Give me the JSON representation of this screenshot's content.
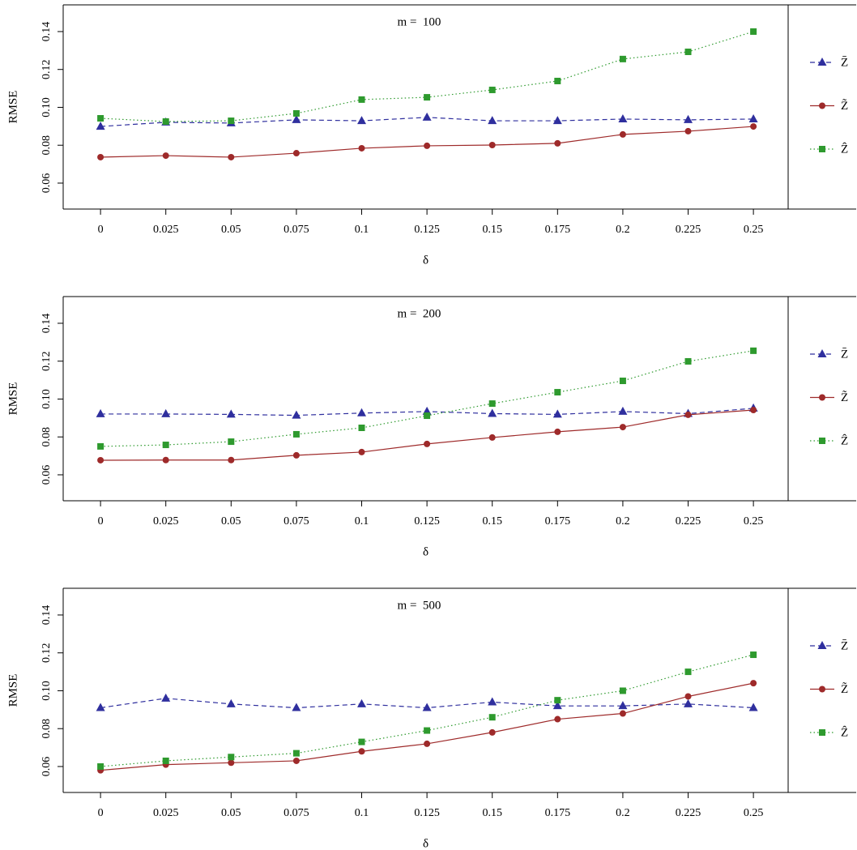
{
  "chart_data": [
    {
      "type": "line",
      "title": "m =  100",
      "xlabel": "δ",
      "ylabel": "RMSE",
      "x": [
        0,
        0.025,
        0.05,
        0.075,
        0.1,
        0.125,
        0.15,
        0.175,
        0.2,
        0.225,
        0.25
      ],
      "xlim": [
        -0.0143,
        0.2633
      ],
      "xticks": [
        0,
        0.025,
        0.05,
        0.075,
        0.1,
        0.125,
        0.15,
        0.175,
        0.2,
        0.225,
        0.25
      ],
      "ylim": [
        0.0463,
        0.1541
      ],
      "yticks": [
        0.06,
        0.08,
        {
          "value": 0.1,
          "label": "0.10"
        },
        0.12,
        0.14
      ],
      "legend_position": "right",
      "series": [
        {
          "name": "Z̄",
          "color": "#2f2f9e",
          "linestyle": "dashed",
          "marker": "triangle",
          "values": [
            0.0899,
            0.0921,
            0.0917,
            0.0934,
            0.0929,
            0.0947,
            0.0929,
            0.0929,
            0.0938,
            0.0934,
            0.0938
          ]
        },
        {
          "name": "Z̃",
          "color": "#9e2a2a",
          "linestyle": "solid",
          "marker": "circle",
          "values": [
            0.0737,
            0.0745,
            0.0737,
            0.0758,
            0.0784,
            0.0797,
            0.0801,
            0.081,
            0.0857,
            0.0874,
            0.0899
          ]
        },
        {
          "name": "Ẑ",
          "color": "#2e9a2e",
          "linestyle": "dotted",
          "marker": "square",
          "values": [
            0.0942,
            0.0925,
            0.0929,
            0.0968,
            0.1041,
            0.1053,
            0.1092,
            0.1139,
            0.1255,
            0.1293,
            0.14
          ]
        }
      ]
    },
    {
      "type": "line",
      "title": "m =  200",
      "xlabel": "δ",
      "ylabel": "RMSE",
      "x": [
        0,
        0.025,
        0.05,
        0.075,
        0.1,
        0.125,
        0.15,
        0.175,
        0.2,
        0.225,
        0.25
      ],
      "xlim": [
        -0.0143,
        0.2633
      ],
      "xticks": [
        0,
        0.025,
        0.05,
        0.075,
        0.1,
        0.125,
        0.15,
        0.175,
        0.2,
        0.225,
        0.25
      ],
      "ylim": [
        0.0463,
        0.1541
      ],
      "yticks": [
        0.06,
        0.08,
        {
          "value": 0.1,
          "label": "0.10"
        },
        0.12,
        0.14
      ],
      "legend_position": "right",
      "series": [
        {
          "name": "Z̄",
          "color": "#2f2f9e",
          "linestyle": "dashed",
          "marker": "triangle",
          "values": [
            0.0921,
            0.0921,
            0.0919,
            0.0914,
            0.0926,
            0.0934,
            0.0923,
            0.0919,
            0.0934,
            0.0923,
            0.0951
          ]
        },
        {
          "name": "Z̃",
          "color": "#9e2a2a",
          "linestyle": "solid",
          "marker": "circle",
          "values": [
            0.0677,
            0.0678,
            0.0678,
            0.0703,
            0.072,
            0.0763,
            0.0797,
            0.0827,
            0.0852,
            0.0917,
            0.0942
          ]
        },
        {
          "name": "Ẑ",
          "color": "#2e9a2e",
          "linestyle": "dotted",
          "marker": "square",
          "values": [
            0.075,
            0.0758,
            0.0775,
            0.0814,
            0.0848,
            0.0912,
            0.0976,
            0.1036,
            0.1096,
            0.1199,
            0.1255
          ]
        }
      ]
    },
    {
      "type": "line",
      "title": "m =  500",
      "xlabel": "δ",
      "ylabel": "RMSE",
      "x": [
        0,
        0.025,
        0.05,
        0.075,
        0.1,
        0.125,
        0.15,
        0.175,
        0.2,
        0.225,
        0.25
      ],
      "xlim": [
        -0.0143,
        0.2633
      ],
      "xticks": [
        0,
        0.025,
        0.05,
        0.075,
        0.1,
        0.125,
        0.15,
        0.175,
        0.2,
        0.225,
        0.25
      ],
      "ylim": [
        0.0463,
        0.1541
      ],
      "yticks": [
        0.06,
        0.08,
        {
          "value": 0.1,
          "label": "0.10"
        },
        0.12,
        0.14
      ],
      "legend_position": "right",
      "series": [
        {
          "name": "Z̄",
          "color": "#2f2f9e",
          "linestyle": "dashed",
          "marker": "triangle",
          "values": [
            0.091,
            0.096,
            0.093,
            0.091,
            0.093,
            0.091,
            0.094,
            0.092,
            0.092,
            0.093,
            0.091
          ]
        },
        {
          "name": "Z̃",
          "color": "#9e2a2a",
          "linestyle": "solid",
          "marker": "circle",
          "values": [
            0.058,
            0.061,
            0.062,
            0.063,
            0.068,
            0.072,
            0.078,
            0.085,
            0.088,
            0.097,
            0.104
          ]
        },
        {
          "name": "Ẑ",
          "color": "#2e9a2e",
          "linestyle": "dotted",
          "marker": "square",
          "values": [
            0.06,
            0.063,
            0.065,
            0.067,
            0.073,
            0.079,
            0.086,
            0.095,
            0.1,
            0.11,
            0.119
          ]
        }
      ]
    }
  ]
}
